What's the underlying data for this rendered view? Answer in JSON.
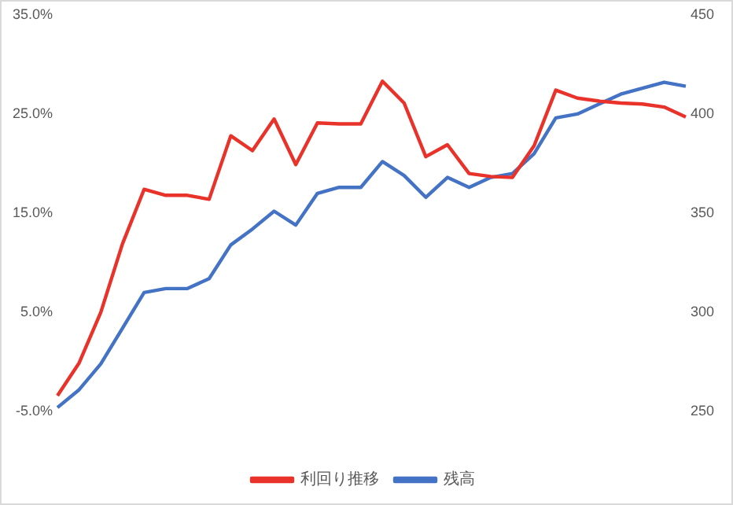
{
  "chart_data": {
    "type": "line",
    "categories": [
      null,
      null,
      null,
      null,
      null,
      null,
      null,
      null,
      null,
      null,
      null,
      null,
      null,
      null,
      null,
      null,
      null,
      null,
      null,
      null,
      null,
      null,
      null,
      null,
      null,
      null,
      null,
      null,
      null,
      null
    ],
    "series": [
      {
        "name": "利回り推移",
        "color": "#e8322a",
        "values": [
          -3.4,
          -0.1,
          5.0,
          11.9,
          17.4,
          16.8,
          16.8,
          16.4,
          22.8,
          21.3,
          24.5,
          19.9,
          24.1,
          24.0,
          24.0,
          28.3,
          26.1,
          20.7,
          21.9,
          19.0,
          18.7,
          18.6,
          21.8,
          27.4,
          26.6,
          26.3,
          26.1,
          26.0,
          25.7,
          24.7
        ]
      },
      {
        "name": "残高",
        "color": "#4472c4",
        "axis": "y2",
        "values": [
          252,
          261,
          274,
          292,
          310,
          312,
          312,
          317,
          334,
          342,
          351,
          344,
          360,
          363,
          363,
          376,
          369,
          358,
          368,
          363,
          368,
          370,
          380,
          398,
          400,
          405,
          410,
          413,
          416,
          414
        ]
      }
    ],
    "ylim": [
      -5,
      35
    ],
    "yticks": [
      {
        "value": -5,
        "label": "-5.0%"
      },
      {
        "value": 5,
        "label": "5.0%"
      },
      {
        "value": 15,
        "label": "15.0%"
      },
      {
        "value": 25,
        "label": "25.0%"
      },
      {
        "value": 35,
        "label": "35.0%"
      }
    ],
    "y2lim": [
      250,
      450
    ],
    "y2ticks": [
      250,
      300,
      350,
      400,
      450
    ],
    "grid": false,
    "legend": "bottom",
    "marker": "none",
    "line_style": "solid"
  }
}
